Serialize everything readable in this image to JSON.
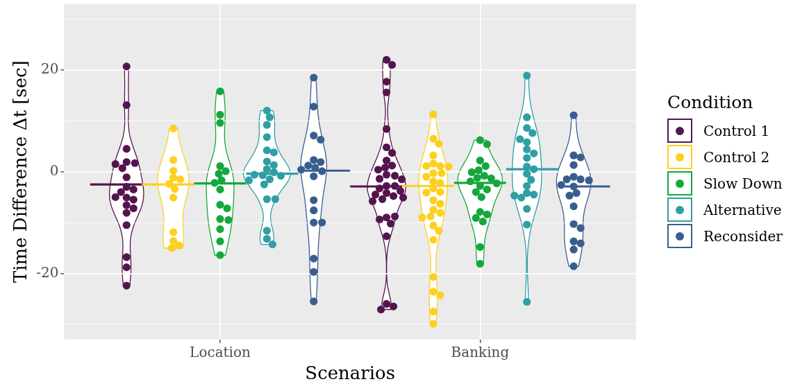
{
  "chart_data": {
    "type": "scatter",
    "xlabel": "Scenarios",
    "ylabel": "Time Difference Δt [sec]",
    "legend_title": "Condition",
    "legend": "right",
    "grid": true,
    "marker": "circle",
    "categories": [
      "Location",
      "Banking"
    ],
    "ylim": [
      -33,
      33
    ],
    "yticks": [
      {
        "value": -30,
        "label": null
      },
      -20,
      {
        "value": -10,
        "label": null
      },
      0,
      {
        "value": 10,
        "label": null
      },
      20,
      {
        "value": 30,
        "label": null
      }
    ],
    "series": [
      {
        "type": "scatter",
        "name": "Control 1",
        "color": "#54154f",
        "x": [
          "Location",
          "Location",
          "Location",
          "Location",
          "Location",
          "Location",
          "Location",
          "Location",
          "Location",
          "Location",
          "Location",
          "Location",
          "Location",
          "Location",
          "Location",
          "Location",
          "Location",
          "Location",
          "Location",
          "Location",
          "Location",
          "Banking",
          "Banking",
          "Banking",
          "Banking",
          "Banking",
          "Banking",
          "Banking",
          "Banking",
          "Banking",
          "Banking",
          "Banking",
          "Banking",
          "Banking",
          "Banking",
          "Banking",
          "Banking",
          "Banking",
          "Banking",
          "Banking",
          "Banking",
          "Banking",
          "Banking",
          "Banking",
          "Banking",
          "Banking",
          "Banking",
          "Banking",
          "Banking",
          "Banking",
          "Banking",
          "Banking",
          "Banking",
          "Banking"
        ],
        "values": [
          20.7,
          13.1,
          4.5,
          1.9,
          1.7,
          0.7,
          1.5,
          -1.1,
          -3.0,
          -3.5,
          -4.0,
          -5.1,
          -5.5,
          -5.0,
          -6.6,
          -7.2,
          -8.1,
          -10.5,
          -16.8,
          -18.8,
          -22.4,
          22.0,
          21.0,
          17.7,
          15.6,
          8.4,
          4.8,
          3.7,
          2.2,
          1.2,
          0.8,
          0.4,
          -0.6,
          -0.8,
          -1.4,
          -1.5,
          -2.8,
          -2.8,
          -3.3,
          -3.8,
          -4.2,
          -4.8,
          -4.5,
          -5.1,
          -5.4,
          -5.8,
          -9.0,
          -8.8,
          -9.4,
          -10.2,
          -12.7,
          -26.0,
          -26.5,
          -27.1
        ]
      },
      {
        "type": "scatter",
        "name": "Control 2",
        "color": "#fcd020",
        "x": [
          "Location",
          "Location",
          "Location",
          "Location",
          "Location",
          "Location",
          "Location",
          "Location",
          "Location",
          "Location",
          "Location",
          "Location",
          "Banking",
          "Banking",
          "Banking",
          "Banking",
          "Banking",
          "Banking",
          "Banking",
          "Banking",
          "Banking",
          "Banking",
          "Banking",
          "Banking",
          "Banking",
          "Banking",
          "Banking",
          "Banking",
          "Banking",
          "Banking",
          "Banking",
          "Banking",
          "Banking",
          "Banking",
          "Banking",
          "Banking",
          "Banking",
          "Banking",
          "Banking",
          "Banking",
          "Banking",
          "Banking"
        ],
        "values": [
          8.5,
          2.3,
          0.2,
          -1.2,
          -1.5,
          -2.4,
          -3.4,
          -5.1,
          -11.9,
          -13.6,
          -14.5,
          -15.0,
          11.3,
          6.5,
          5.5,
          3.2,
          1.6,
          1.1,
          1.1,
          1.0,
          -0.3,
          -0.3,
          -1.0,
          -1.9,
          -2.2,
          -3.3,
          -4.0,
          -4.1,
          -5.6,
          -6.3,
          -7.5,
          -8.1,
          -8.8,
          -9.0,
          -10.6,
          -11.6,
          -13.4,
          -20.7,
          -23.6,
          -24.3,
          -27.5,
          -29.9
        ]
      },
      {
        "type": "scatter",
        "name": "Slow Down",
        "color": "#14a83c",
        "x": [
          "Location",
          "Location",
          "Location",
          "Location",
          "Location",
          "Location",
          "Location",
          "Location",
          "Location",
          "Location",
          "Location",
          "Location",
          "Location",
          "Location",
          "Location",
          "Location",
          "Banking",
          "Banking",
          "Banking",
          "Banking",
          "Banking",
          "Banking",
          "Banking",
          "Banking",
          "Banking",
          "Banking",
          "Banking",
          "Banking",
          "Banking",
          "Banking",
          "Banking",
          "Banking",
          "Banking",
          "Banking",
          "Banking",
          "Banking",
          "Banking"
        ],
        "values": [
          15.8,
          11.2,
          9.6,
          1.1,
          0.1,
          -0.4,
          -1.7,
          -2.2,
          -3.5,
          -6.5,
          -7.2,
          -9.3,
          -9.5,
          -11.3,
          -13.7,
          -16.4,
          6.2,
          5.4,
          2.2,
          1.1,
          0.3,
          -0.1,
          -0.8,
          -1.2,
          -1.3,
          -2.8,
          -1.9,
          -2.3,
          -3.5,
          -4.0,
          -5.0,
          -7.9,
          -8.4,
          -9.1,
          -9.8,
          -14.8,
          -18.1
        ]
      },
      {
        "type": "scatter",
        "name": "Alternative",
        "color": "#2e9fa4",
        "x": [
          "Location",
          "Location",
          "Location",
          "Location",
          "Location",
          "Location",
          "Location",
          "Location",
          "Location",
          "Location",
          "Location",
          "Location",
          "Location",
          "Location",
          "Location",
          "Location",
          "Location",
          "Location",
          "Location",
          "Location",
          "Location",
          "Banking",
          "Banking",
          "Banking",
          "Banking",
          "Banking",
          "Banking",
          "Banking",
          "Banking",
          "Banking",
          "Banking",
          "Banking",
          "Banking",
          "Banking",
          "Banking",
          "Banking",
          "Banking",
          "Banking",
          "Banking",
          "Banking",
          "Banking",
          "Banking"
        ],
        "values": [
          12.0,
          10.7,
          9.2,
          6.8,
          4.2,
          3.8,
          2.0,
          1.3,
          0.5,
          -0.1,
          -0.7,
          -0.6,
          -0.8,
          -1.5,
          -1.7,
          -2.5,
          -5.4,
          -5.4,
          -11.6,
          -13.2,
          -14.3,
          18.9,
          10.7,
          8.6,
          7.6,
          5.8,
          6.4,
          4.4,
          3.6,
          2.7,
          1.0,
          0.5,
          -0.4,
          -1.6,
          -2.8,
          -4.2,
          -4.5,
          -5.1,
          -7.3,
          -10.4,
          -25.6,
          -4.7
        ]
      },
      {
        "type": "scatter",
        "name": "Reconsider",
        "color": "#395d8f",
        "x": [
          "Location",
          "Location",
          "Location",
          "Location",
          "Location",
          "Location",
          "Location",
          "Location",
          "Location",
          "Location",
          "Location",
          "Location",
          "Location",
          "Location",
          "Location",
          "Location",
          "Location",
          "Location",
          "Banking",
          "Banking",
          "Banking",
          "Banking",
          "Banking",
          "Banking",
          "Banking",
          "Banking",
          "Banking",
          "Banking",
          "Banking",
          "Banking",
          "Banking",
          "Banking",
          "Banking",
          "Banking",
          "Banking",
          "Banking",
          "Banking"
        ],
        "values": [
          18.5,
          12.8,
          7.1,
          6.3,
          2.3,
          1.9,
          1.2,
          0.8,
          0.1,
          0.4,
          -0.9,
          -5.6,
          -7.6,
          -10.0,
          -10.0,
          -17.1,
          -19.7,
          -25.5,
          11.1,
          3.2,
          2.8,
          1.3,
          -1.0,
          -1.5,
          -1.5,
          -1.7,
          -2.9,
          -2.6,
          -4.2,
          -4.7,
          -6.8,
          -10.3,
          -11.1,
          -13.7,
          -14.1,
          -15.3,
          -18.6
        ]
      }
    ],
    "ref_lines": [
      {
        "axis": "y",
        "value": -2.5,
        "color": "#54154f"
      },
      {
        "axis": "y",
        "value": -2.5,
        "color": "#fcd020"
      },
      {
        "axis": "y",
        "value": -2.3,
        "color": "#14a83c"
      },
      {
        "axis": "y",
        "value": -0.4,
        "color": "#2e9fa4"
      },
      {
        "axis": "y",
        "value": 0.2,
        "color": "#395d8f"
      },
      {
        "axis": "y",
        "value": -2.9,
        "color": "#54154f"
      },
      {
        "axis": "y",
        "value": -2.8,
        "color": "#fcd020"
      },
      {
        "axis": "y",
        "value": -2.2,
        "color": "#14a83c"
      },
      {
        "axis": "y",
        "value": 0.5,
        "color": "#2e9fa4"
      },
      {
        "axis": "y",
        "value": -2.9,
        "color": "#395d8f"
      }
    ]
  }
}
